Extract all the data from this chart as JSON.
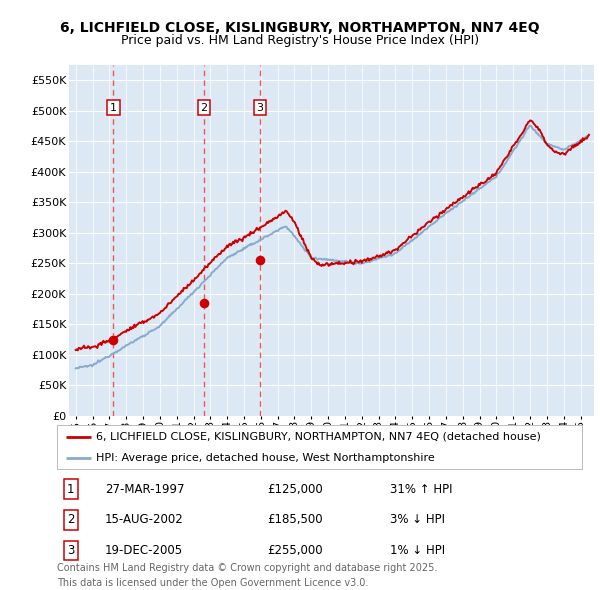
{
  "title_line1": "6, LICHFIELD CLOSE, KISLINGBURY, NORTHAMPTON, NN7 4EQ",
  "title_line2": "Price paid vs. HM Land Registry's House Price Index (HPI)",
  "background_color": "#dce9f5",
  "fig_background": "#ffffff",
  "grid_color": "#ffffff",
  "red_line_color": "#cc0000",
  "blue_line_color": "#88aacc",
  "dashed_line_color": "#ee5555",
  "legend_red_label": "6, LICHFIELD CLOSE, KISLINGBURY, NORTHAMPTON, NN7 4EQ (detached house)",
  "legend_blue_label": "HPI: Average price, detached house, West Northamptonshire",
  "sale1_date": "27-MAR-1997",
  "sale1_price": 125000,
  "sale1_hpi": "31% ↑ HPI",
  "sale1_x": 1997.23,
  "sale2_date": "15-AUG-2002",
  "sale2_price": 185500,
  "sale2_hpi": "3% ↓ HPI",
  "sale2_x": 2002.62,
  "sale3_date": "19-DEC-2005",
  "sale3_price": 255000,
  "sale3_hpi": "1% ↓ HPI",
  "sale3_x": 2005.96,
  "footer_line1": "Contains HM Land Registry data © Crown copyright and database right 2025.",
  "footer_line2": "This data is licensed under the Open Government Licence v3.0.",
  "ylim": [
    0,
    575000
  ],
  "yticks": [
    0,
    50000,
    100000,
    150000,
    200000,
    250000,
    300000,
    350000,
    400000,
    450000,
    500000,
    550000
  ],
  "ytick_labels": [
    "£0",
    "£50K",
    "£100K",
    "£150K",
    "£200K",
    "£250K",
    "£300K",
    "£350K",
    "£400K",
    "£450K",
    "£500K",
    "£550K"
  ],
  "xlim": [
    1994.6,
    2025.8
  ],
  "title_fontsize": 10,
  "subtitle_fontsize": 9,
  "tick_fontsize": 8,
  "legend_fontsize": 8,
  "table_fontsize": 8.5,
  "footer_fontsize": 7
}
